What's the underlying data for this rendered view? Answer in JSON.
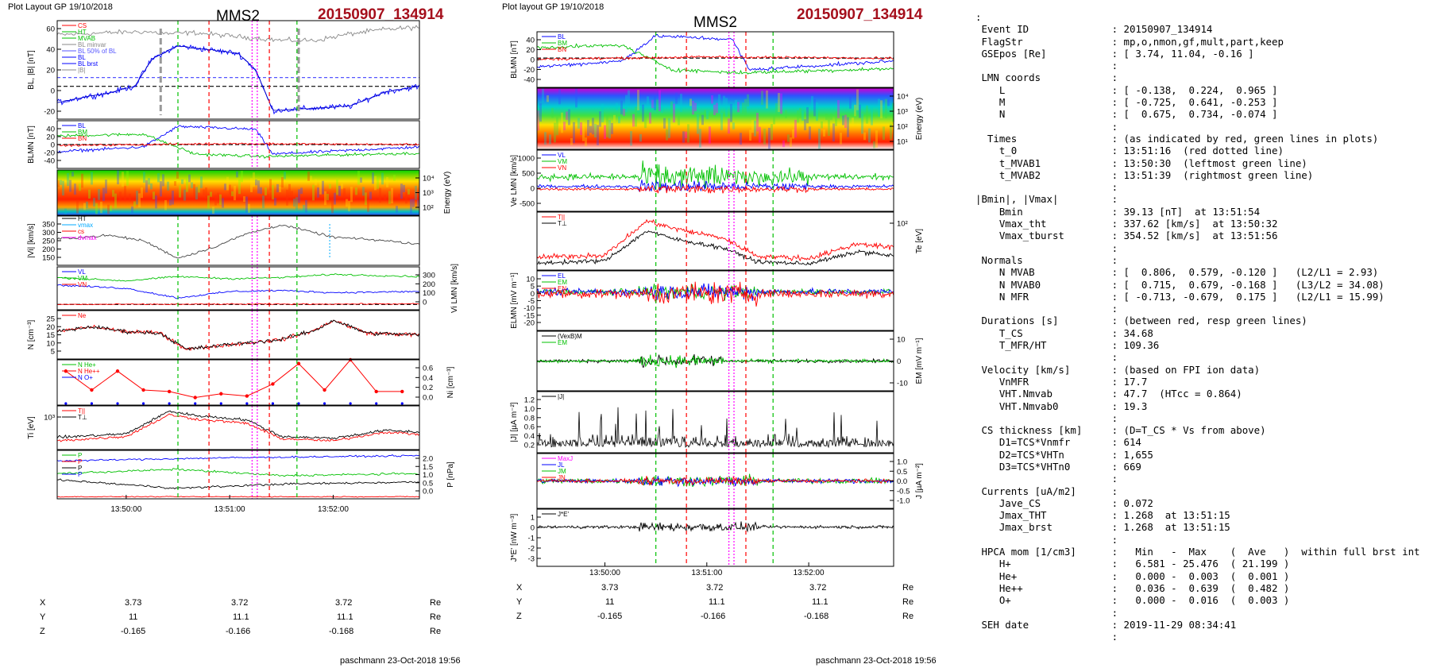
{
  "left_page": {
    "header": "Plot Layout GP 19/10/2018",
    "spacecraft": "MMS2",
    "event": "20150907_134914",
    "footer": "paschmann 23-Oct-2018 19:56"
  },
  "right_page": {
    "header": "Plot layout GP 19/10/2018",
    "spacecraft": "MMS2",
    "event": "20150907_134914",
    "footer": "paschmann 23-Oct-2018 19:56"
  },
  "colors": {
    "red": "#ff0000",
    "green": "#00c000",
    "blue": "#0000ff",
    "black": "#000000",
    "magenta": "#ff00ff",
    "gray": "#888888",
    "cyan": "#00aaff",
    "event_red": "#a50f1c"
  },
  "time_ticks": [
    "13:50:00",
    "13:51:00",
    "13:52:00"
  ],
  "coords": {
    "rows": [
      {
        "label": "X",
        "values": [
          "3.73",
          "3.72",
          "3.72"
        ],
        "unit": "Re"
      },
      {
        "label": "Y",
        "values": [
          "11",
          "11.1",
          "11.1"
        ],
        "unit": "Re"
      },
      {
        "label": "Z",
        "values": [
          "-0.165",
          "-0.166",
          "-0.168"
        ],
        "unit": "Re"
      }
    ]
  },
  "left_panels": {
    "p1": {
      "ylabel": "BL, |B| [nT]",
      "ticks": [
        "60",
        "40",
        "20",
        "0",
        "-20"
      ],
      "legend": [
        "CS",
        "HT",
        "MVAB",
        "BL minvar",
        "BL 50% of BL",
        "BL",
        "BL brst",
        "|B|"
      ]
    },
    "p2": {
      "ylabel": "BLMN [nT]",
      "ticks": [
        "40",
        "20",
        "0",
        "-20",
        "-40"
      ],
      "legend": [
        "BL",
        "BM",
        "BN"
      ]
    },
    "p3": {
      "ylabel": "Energy (eV)",
      "ticks": [
        "10⁴",
        "10³",
        "10²"
      ]
    },
    "p4": {
      "ylabel": "|Vi| [km/s]",
      "ticks": [
        "350",
        "300",
        "250",
        "200",
        "150"
      ],
      "legend": [
        "HT",
        "vmax",
        "cs",
        "dvmax"
      ]
    },
    "p5": {
      "ylabel": "Vi LMN [km/s]",
      "ticks": [
        "300",
        "200",
        "100",
        "0"
      ],
      "legend": [
        "VL",
        "VM",
        "VN"
      ]
    },
    "p6": {
      "ylabel": "N [cm⁻³]",
      "ticks": [
        "25",
        "20",
        "15",
        "10",
        "5"
      ],
      "legend": [
        "Ne"
      ]
    },
    "p7": {
      "ylabel": "Ni [cm⁻³]",
      "ticks": [
        "0.6",
        "0.4",
        "0.2",
        "0.0"
      ],
      "legend": [
        "N He+",
        "N He++",
        "N O+"
      ]
    },
    "p8": {
      "ylabel": "Ti [eV]",
      "ticks": [
        "10³"
      ],
      "legend": [
        "T||",
        "T⊥"
      ]
    },
    "p9": {
      "ylabel": "P [nPa]",
      "ticks": [
        "2.0",
        "1.5",
        "1.0",
        "0.5",
        "0.0"
      ],
      "legend": [
        "P",
        "P",
        "P",
        "P"
      ]
    }
  },
  "right_panels": {
    "q1": {
      "ylabel": "BLMN [nT]",
      "ticks": [
        "40",
        "20",
        "0",
        "-20",
        "-40"
      ],
      "legend": [
        "BL",
        "BM",
        "BN"
      ]
    },
    "q2": {
      "ylabel": "Energy (eV)",
      "ticks": [
        "10⁴",
        "10³",
        "10²",
        "10¹"
      ]
    },
    "q3": {
      "ylabel": "Ve LMN [km/s]",
      "ticks": [
        "1000",
        "500",
        "0",
        "-500"
      ],
      "legend": [
        "VL",
        "VM",
        "VN"
      ]
    },
    "q4": {
      "ylabel": "Te [eV]",
      "ticks": [
        "10²"
      ],
      "legend": [
        "T||",
        "T⊥"
      ]
    },
    "q5": {
      "ylabel": "ELMN [mV m⁻¹]",
      "ticks": [
        "10",
        "5",
        "0",
        "-5",
        "-10",
        "-15",
        "-20"
      ],
      "legend": [
        "EL",
        "EM",
        "EN"
      ]
    },
    "q6": {
      "ylabel": "EM [mV m⁻¹]",
      "ticks": [
        "10",
        "0",
        "-10"
      ],
      "legend": [
        "(VexB)M",
        "EM"
      ]
    },
    "q7": {
      "ylabel": "|J| [µA m⁻²]",
      "ticks": [
        "1.2",
        "1.0",
        "0.8",
        "0.6",
        "0.4",
        "0.2"
      ],
      "legend": [
        "|J|"
      ]
    },
    "q8": {
      "ylabel": "J [µA m⁻²]",
      "ticks": [
        "1.0",
        "0.5",
        "0.0",
        "-0.5",
        "-1.0"
      ],
      "legend": [
        "MaxJ",
        "JL",
        "JM",
        "JN"
      ]
    },
    "q9": {
      "ylabel": "J*E' [nW m⁻³]",
      "ticks": [
        "1",
        "0",
        "-1",
        "-2",
        "-3"
      ],
      "legend": [
        "J*E'"
      ]
    }
  },
  "info_lines": [
    ":",
    " Event ID              : 20150907_134914",
    " FlagStr               : mp,o,nmon,gf,mult,part,keep",
    " GSEpos [Re]           : [ 3.74, 11.04, -0.16 ]",
    "                       :",
    " LMN coords            :",
    "    L                  : [ -0.138,  0.224,  0.965 ]",
    "    M                  : [ -0.725,  0.641, -0.253 ]",
    "    N                  : [  0.675,  0.734, -0.074 ]",
    "                       :",
    "  Times                : (as indicated by red, green lines in plots)",
    "    t_0                : 13:51:16  (red dotted line)",
    "    t_MVAB1            : 13:50:30  (leftmost green line)",
    "    t_MVAB2            : 13:51:39  (rightmost green line)",
    "                       :",
    "|Bmin|, |Vmax|         :",
    "    Bmin               : 39.13 [nT]  at 13:51:54",
    "    Vmax_tht           : 337.62 [km/s]  at 13:50:32",
    "    Vmax_tburst        : 354.52 [km/s]  at 13:51:56",
    "                       :",
    " Normals               :",
    "    N MVAB             : [  0.806,  0.579, -0.120 ]   (L2/L1 = 2.93)",
    "    N MVAB0            : [  0.715,  0.679, -0.168 ]   (L3/L2 = 34.08)",
    "    N MFR              : [ -0.713, -0.679,  0.175 ]   (L2/L1 = 15.99)",
    "                       :",
    " Durations [s]         : (between red, resp green lines)",
    "    T_CS               : 34.68",
    "    T_MFR/HT           : 109.36",
    "                       :",
    " Velocity [km/s]       : (based on FPI ion data)",
    "    VnMFR              : 17.7",
    "    VHT.Nmvab          : 47.7  (HTcc = 0.864)",
    "    VHT.Nmvab0         : 19.3",
    "                       :",
    " CS thickness [km]     : (D=T_CS * Vs from above)",
    "    D1=TCS*Vnmfr       : 614",
    "    D2=TCS*VHTn        : 1,655",
    "    D3=TCS*VHTn0       : 669",
    "                       :",
    " Currents [uA/m2]      :",
    "    Jave_CS            : 0.072",
    "    Jmax_THT           : 1.268  at 13:51:15",
    "    Jmax_brst          : 1.268  at 13:51:15",
    "                       :",
    " HPCA mom [1/cm3]      :   Min   -  Max    (  Ave   )  within full brst int",
    "    H+                 :   6.581 - 25.476  ( 21.199 )",
    "    He+                :   0.000 -  0.003  (  0.001 )",
    "    He++               :   0.036 -  0.639  (  0.482 )",
    "    O+                 :   0.000 -  0.016  (  0.003 )",
    "                       :",
    " SEH date              : 2019-11-29 08:34:41",
    "                       :"
  ],
  "chart_data": [
    {
      "type": "line",
      "title": "MMS2 20150907_134914",
      "panel": "BL, |B|",
      "x_range": [
        "13:49:20",
        "13:52:50"
      ],
      "ylim": [
        -30,
        60
      ],
      "series": [
        {
          "name": "|B|",
          "x": [
            "13:49:20",
            "13:49:50",
            "13:50:10",
            "13:50:25",
            "13:50:40",
            "13:51:00",
            "13:51:15",
            "13:51:30",
            "13:51:50",
            "13:52:10",
            "13:52:30",
            "13:52:50"
          ],
          "values": [
            47,
            49,
            50,
            48,
            49,
            46,
            44,
            42,
            42,
            48,
            52,
            54
          ]
        },
        {
          "name": "BL",
          "x": [
            "13:49:20",
            "13:49:35",
            "13:49:50",
            "13:50:05",
            "13:50:15",
            "13:50:30",
            "13:50:50",
            "13:51:05",
            "13:51:15",
            "13:51:25",
            "13:51:50",
            "13:52:10",
            "13:52:30",
            "13:52:50"
          ],
          "values": [
            -15,
            -10,
            -6,
            0,
            25,
            37,
            33,
            30,
            15,
            -22,
            -20,
            -18,
            -5,
            0
          ]
        }
      ]
    },
    {
      "type": "line",
      "panel": "Vi LMN",
      "ylim": [
        -50,
        350
      ],
      "series": [
        {
          "name": "VL",
          "x": [
            "13:49:20",
            "13:50:00",
            "13:50:30",
            "13:51:00",
            "13:51:30",
            "13:52:00",
            "13:52:50"
          ],
          "values": [
            250,
            220,
            260,
            240,
            250,
            280,
            260
          ]
        },
        {
          "name": "VM",
          "x": [
            "13:49:20",
            "13:50:00",
            "13:50:30",
            "13:51:00",
            "13:51:30",
            "13:52:00",
            "13:52:50"
          ],
          "values": [
            180,
            150,
            60,
            120,
            130,
            110,
            120
          ]
        }
      ]
    },
    {
      "type": "line",
      "panel": "N",
      "ylim": [
        0,
        30
      ],
      "series": [
        {
          "name": "Ne",
          "x": [
            "13:49:20",
            "13:49:40",
            "13:50:00",
            "13:50:20",
            "13:50:35",
            "13:51:00",
            "13:51:30",
            "13:51:50",
            "13:52:00",
            "13:52:20",
            "13:52:50"
          ],
          "values": [
            17,
            20,
            17,
            16,
            6,
            9,
            12,
            18,
            24,
            16,
            15
          ]
        }
      ]
    },
    {
      "type": "scatter",
      "panel": "Ni",
      "ylim": [
        0,
        0.6
      ],
      "series": [
        {
          "name": "N He++",
          "x": [
            "13:49:25",
            "13:49:40",
            "13:49:55",
            "13:50:10",
            "13:50:25",
            "13:50:40",
            "13:50:55",
            "13:51:10",
            "13:51:25",
            "13:51:40",
            "13:51:55",
            "13:52:10",
            "13:52:25",
            "13:52:40"
          ],
          "values": [
            0.45,
            0.2,
            0.45,
            0.2,
            0.18,
            0.1,
            0.15,
            0.12,
            0.28,
            0.55,
            0.2,
            0.6,
            0.18,
            0.18
          ]
        }
      ]
    }
  ]
}
